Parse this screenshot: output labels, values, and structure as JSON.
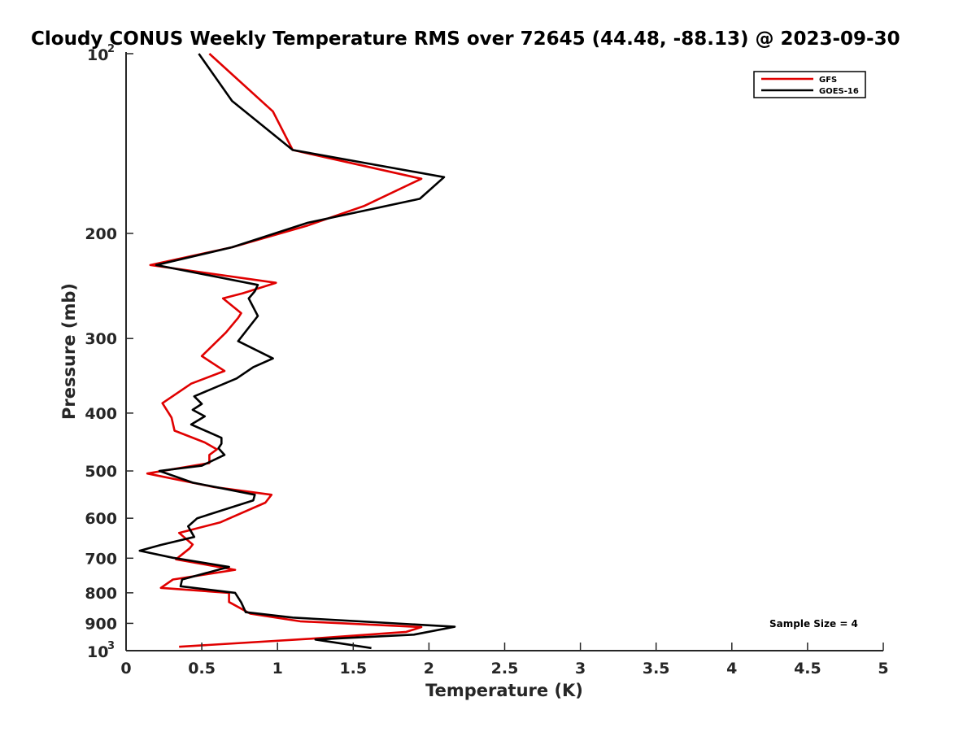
{
  "chart_data": {
    "type": "line",
    "title": "Cloudy CONUS Weekly Temperature RMS over 72645 (44.48, -88.13) @ 2023-09-30",
    "xlabel": "Temperature (K)",
    "ylabel": "Pressure (mb)",
    "xlim": [
      0,
      5
    ],
    "ylim": [
      100,
      1000
    ],
    "y_scale": "log",
    "y_reversed": true,
    "x_ticks": [
      "0",
      "0.5",
      "1",
      "1.5",
      "2",
      "2.5",
      "3",
      "3.5",
      "4",
      "4.5",
      "5"
    ],
    "y_ticks": [
      {
        "value": 100,
        "base": "10",
        "exp": "2"
      },
      {
        "value": 200,
        "label": "200"
      },
      {
        "value": 300,
        "label": "300"
      },
      {
        "value": 400,
        "label": "400"
      },
      {
        "value": 500,
        "label": "500"
      },
      {
        "value": 600,
        "label": "600"
      },
      {
        "value": 700,
        "label": "700"
      },
      {
        "value": 800,
        "label": "800"
      },
      {
        "value": 900,
        "label": "900"
      },
      {
        "value": 1000,
        "base": "10",
        "exp": "3"
      }
    ],
    "legend_position": "top-right",
    "grid": false,
    "annotation": "Sample Size = 4",
    "series": [
      {
        "name": "GFS",
        "color": "#e00000",
        "points": [
          [
            0.55,
            100
          ],
          [
            0.97,
            125
          ],
          [
            1.1,
            145
          ],
          [
            1.95,
            162
          ],
          [
            1.57,
            180
          ],
          [
            1.2,
            194
          ],
          [
            0.7,
            211
          ],
          [
            0.16,
            226
          ],
          [
            0.99,
            242
          ],
          [
            0.77,
            252
          ],
          [
            0.64,
            257
          ],
          [
            0.76,
            272
          ],
          [
            0.74,
            277
          ],
          [
            0.66,
            293
          ],
          [
            0.5,
            321
          ],
          [
            0.65,
            340
          ],
          [
            0.43,
            357
          ],
          [
            0.24,
            385
          ],
          [
            0.3,
            407
          ],
          [
            0.32,
            428
          ],
          [
            0.52,
            448
          ],
          [
            0.6,
            460
          ],
          [
            0.55,
            470
          ],
          [
            0.55,
            485
          ],
          [
            0.14,
            505
          ],
          [
            0.58,
            532
          ],
          [
            0.96,
            548
          ],
          [
            0.92,
            565
          ],
          [
            0.62,
            610
          ],
          [
            0.35,
            635
          ],
          [
            0.44,
            664
          ],
          [
            0.42,
            674
          ],
          [
            0.33,
            703
          ],
          [
            0.72,
            732
          ],
          [
            0.31,
            760
          ],
          [
            0.23,
            785
          ],
          [
            0.68,
            800
          ],
          [
            0.68,
            829
          ],
          [
            0.82,
            867
          ],
          [
            1.15,
            893
          ],
          [
            1.95,
            913
          ],
          [
            1.85,
            930
          ],
          [
            1.22,
            955
          ],
          [
            0.35,
            985
          ]
        ]
      },
      {
        "name": "GOES-16",
        "color": "#000000",
        "points": [
          [
            0.48,
            100
          ],
          [
            0.7,
            120
          ],
          [
            1.1,
            145
          ],
          [
            2.1,
            161
          ],
          [
            1.94,
            175
          ],
          [
            1.2,
            192
          ],
          [
            0.7,
            211
          ],
          [
            0.2,
            226
          ],
          [
            0.87,
            244
          ],
          [
            0.85,
            250
          ],
          [
            0.81,
            257
          ],
          [
            0.87,
            275
          ],
          [
            0.74,
            303
          ],
          [
            0.97,
            324
          ],
          [
            0.84,
            335
          ],
          [
            0.73,
            350
          ],
          [
            0.45,
            375
          ],
          [
            0.5,
            386
          ],
          [
            0.44,
            395
          ],
          [
            0.52,
            405
          ],
          [
            0.43,
            418
          ],
          [
            0.63,
            440
          ],
          [
            0.63,
            450
          ],
          [
            0.61,
            458
          ],
          [
            0.65,
            470
          ],
          [
            0.5,
            490
          ],
          [
            0.22,
            500
          ],
          [
            0.44,
            523
          ],
          [
            0.85,
            548
          ],
          [
            0.84,
            560
          ],
          [
            0.47,
            600
          ],
          [
            0.41,
            619
          ],
          [
            0.45,
            645
          ],
          [
            0.23,
            665
          ],
          [
            0.09,
            680
          ],
          [
            0.31,
            699
          ],
          [
            0.68,
            724
          ],
          [
            0.37,
            760
          ],
          [
            0.36,
            780
          ],
          [
            0.72,
            800
          ],
          [
            0.76,
            830
          ],
          [
            0.79,
            862
          ],
          [
            1.1,
            880
          ],
          [
            2.17,
            912
          ],
          [
            1.9,
            940
          ],
          [
            1.25,
            958
          ],
          [
            1.62,
            990
          ]
        ]
      }
    ]
  }
}
